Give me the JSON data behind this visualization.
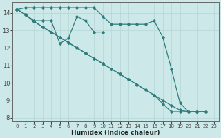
{
  "xlabel": "Humidex (Indice chaleur)",
  "bg_color": "#cce8e8",
  "line_color": "#2d7d7d",
  "grid_color": "#b8d8d8",
  "ylim": [
    7.8,
    14.6
  ],
  "xlim": [
    -0.5,
    23.5
  ],
  "yticks": [
    8,
    9,
    10,
    11,
    12,
    13,
    14
  ],
  "xticks": [
    0,
    1,
    2,
    3,
    4,
    5,
    6,
    7,
    8,
    9,
    10,
    11,
    12,
    13,
    14,
    15,
    16,
    17,
    18,
    19,
    20,
    21,
    22,
    23
  ],
  "line1_x": [
    0,
    1,
    2,
    3,
    4,
    5,
    6,
    7,
    8,
    9,
    10,
    11,
    12,
    13,
    14,
    15,
    16,
    17,
    18,
    19,
    20,
    21,
    22
  ],
  "line1_y": [
    14.2,
    14.3,
    14.3,
    14.3,
    14.3,
    14.3,
    14.3,
    14.3,
    14.3,
    14.3,
    13.8,
    13.35,
    13.35,
    13.35,
    13.35,
    13.35,
    13.55,
    12.6,
    10.8,
    8.85,
    8.35,
    8.35,
    8.35
  ],
  "line2_x": [
    0,
    1,
    2,
    3,
    4,
    5,
    6,
    7,
    8,
    9,
    10,
    11,
    12,
    13,
    14,
    15,
    16,
    17,
    18,
    19,
    20,
    21,
    22
  ],
  "line2_y": [
    14.2,
    13.9,
    13.5,
    13.2,
    12.9,
    12.6,
    12.3,
    12.0,
    11.7,
    11.4,
    11.1,
    10.8,
    10.5,
    10.2,
    9.9,
    9.6,
    9.3,
    9.0,
    8.7,
    8.45,
    8.35,
    8.35,
    8.35
  ],
  "line3_x": [
    0,
    1,
    2,
    3,
    4,
    5,
    6,
    7,
    8,
    9,
    10,
    11,
    12,
    13,
    14,
    15,
    16,
    17,
    18,
    19,
    20,
    21,
    22
  ],
  "line3_y": [
    14.2,
    13.9,
    13.5,
    13.2,
    12.9,
    12.6,
    12.3,
    12.0,
    11.7,
    11.4,
    11.1,
    10.8,
    10.5,
    10.2,
    9.9,
    9.6,
    9.3,
    8.8,
    8.35,
    8.35,
    8.35,
    8.35,
    8.35
  ],
  "line4_x": [
    0,
    1,
    2,
    3,
    4,
    5,
    6,
    7,
    8,
    9,
    10
  ],
  "line4_y": [
    14.2,
    13.9,
    13.55,
    13.55,
    13.55,
    12.25,
    12.55,
    13.8,
    13.55,
    12.9,
    12.9
  ]
}
